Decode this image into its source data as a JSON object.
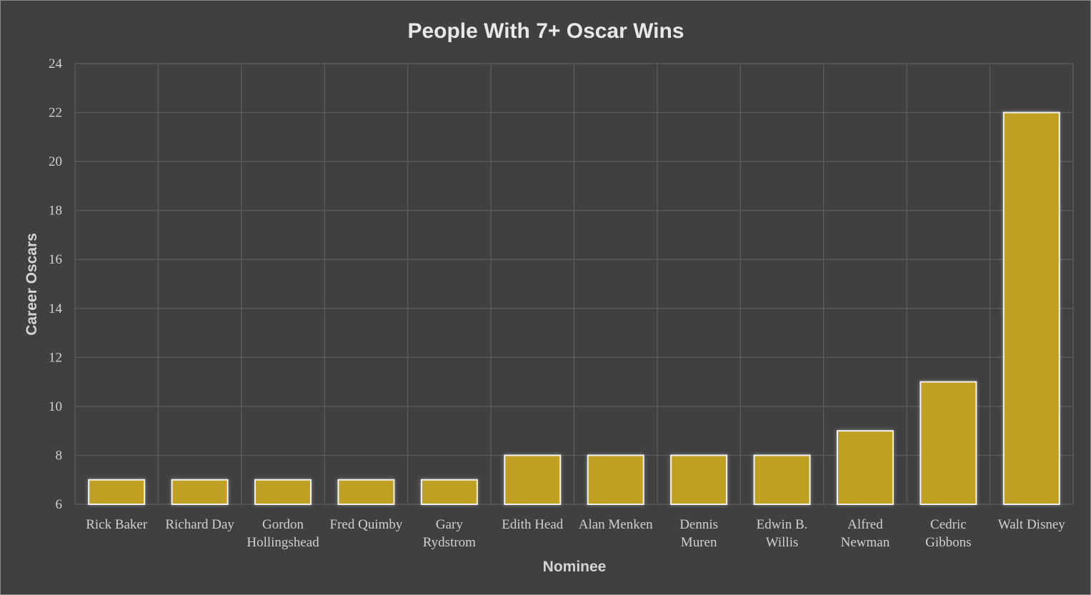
{
  "chart_data": {
    "type": "bar",
    "title": "People With 7+ Oscar Wins",
    "xlabel": "Nominee",
    "ylabel": "Career Oscars",
    "categories": [
      [
        "Rick Baker"
      ],
      [
        "Richard Day"
      ],
      [
        "Gordon",
        "Hollingshead"
      ],
      [
        "Fred Quimby"
      ],
      [
        "Gary",
        "Rydstrom"
      ],
      [
        "Edith Head"
      ],
      [
        "Alan Menken"
      ],
      [
        "Dennis",
        "Muren"
      ],
      [
        "Edwin B.",
        "Willis"
      ],
      [
        "Alfred",
        "Newman"
      ],
      [
        "Cedric",
        "Gibbons"
      ],
      [
        "Walt Disney"
      ]
    ],
    "values": [
      7,
      7,
      7,
      7,
      7,
      8,
      8,
      8,
      8,
      9,
      11,
      22
    ],
    "ylim": [
      6,
      24
    ],
    "yticks": [
      6,
      8,
      10,
      12,
      14,
      16,
      18,
      20,
      22,
      24
    ],
    "grid": true,
    "colors": {
      "bar": "#c0a020",
      "bar_outline": "#f2f2f2",
      "background": "#404040",
      "grid": "#5e5e5e"
    }
  }
}
